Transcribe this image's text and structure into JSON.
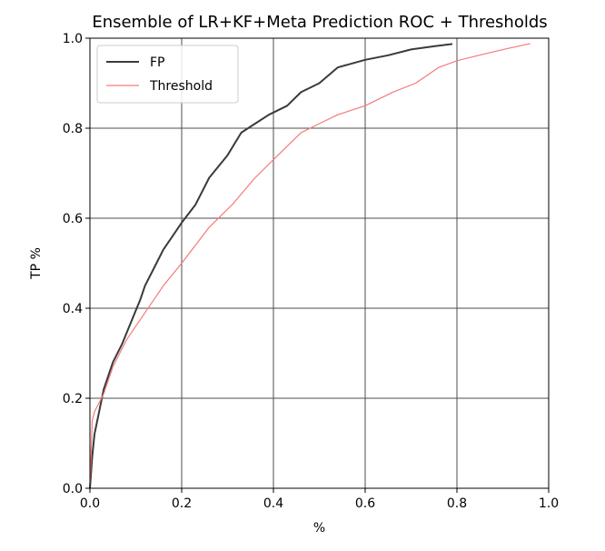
{
  "chart_data": {
    "type": "line",
    "title": "Ensemble of LR+KF+Meta Prediction ROC + Thresholds",
    "xlabel": "%",
    "ylabel": "TP %",
    "xlim": [
      0.0,
      1.0
    ],
    "ylim": [
      0.0,
      1.0
    ],
    "xticks": [
      "0.0",
      "0.2",
      "0.4",
      "0.6",
      "0.8",
      "1.0"
    ],
    "yticks": [
      "0.0",
      "0.2",
      "0.4",
      "0.6",
      "0.8",
      "1.0"
    ],
    "grid": true,
    "legend_position": "upper-left",
    "series": [
      {
        "name": "FP",
        "color": "#3a3a3a",
        "x": [
          0.0,
          0.005,
          0.01,
          0.02,
          0.03,
          0.05,
          0.07,
          0.09,
          0.11,
          0.12,
          0.14,
          0.16,
          0.18,
          0.2,
          0.23,
          0.26,
          0.3,
          0.33,
          0.36,
          0.39,
          0.43,
          0.46,
          0.5,
          0.54,
          0.6,
          0.65,
          0.7,
          0.75,
          0.79
        ],
        "y": [
          0.0,
          0.07,
          0.12,
          0.17,
          0.22,
          0.28,
          0.32,
          0.37,
          0.42,
          0.45,
          0.49,
          0.53,
          0.56,
          0.59,
          0.63,
          0.69,
          0.74,
          0.79,
          0.81,
          0.83,
          0.85,
          0.88,
          0.9,
          0.935,
          0.952,
          0.962,
          0.975,
          0.982,
          0.987
        ]
      },
      {
        "name": "Threshold",
        "color": "#f47a7a",
        "x": [
          0.0,
          0.005,
          0.01,
          0.03,
          0.05,
          0.08,
          0.12,
          0.16,
          0.2,
          0.26,
          0.31,
          0.36,
          0.4,
          0.46,
          0.5,
          0.54,
          0.6,
          0.66,
          0.71,
          0.76,
          0.8,
          0.86,
          0.91,
          0.96
        ],
        "y": [
          0.0,
          0.15,
          0.17,
          0.21,
          0.27,
          0.33,
          0.39,
          0.45,
          0.5,
          0.58,
          0.63,
          0.69,
          0.73,
          0.79,
          0.81,
          0.83,
          0.85,
          0.88,
          0.9,
          0.935,
          0.95,
          0.965,
          0.977,
          0.988
        ]
      }
    ]
  }
}
